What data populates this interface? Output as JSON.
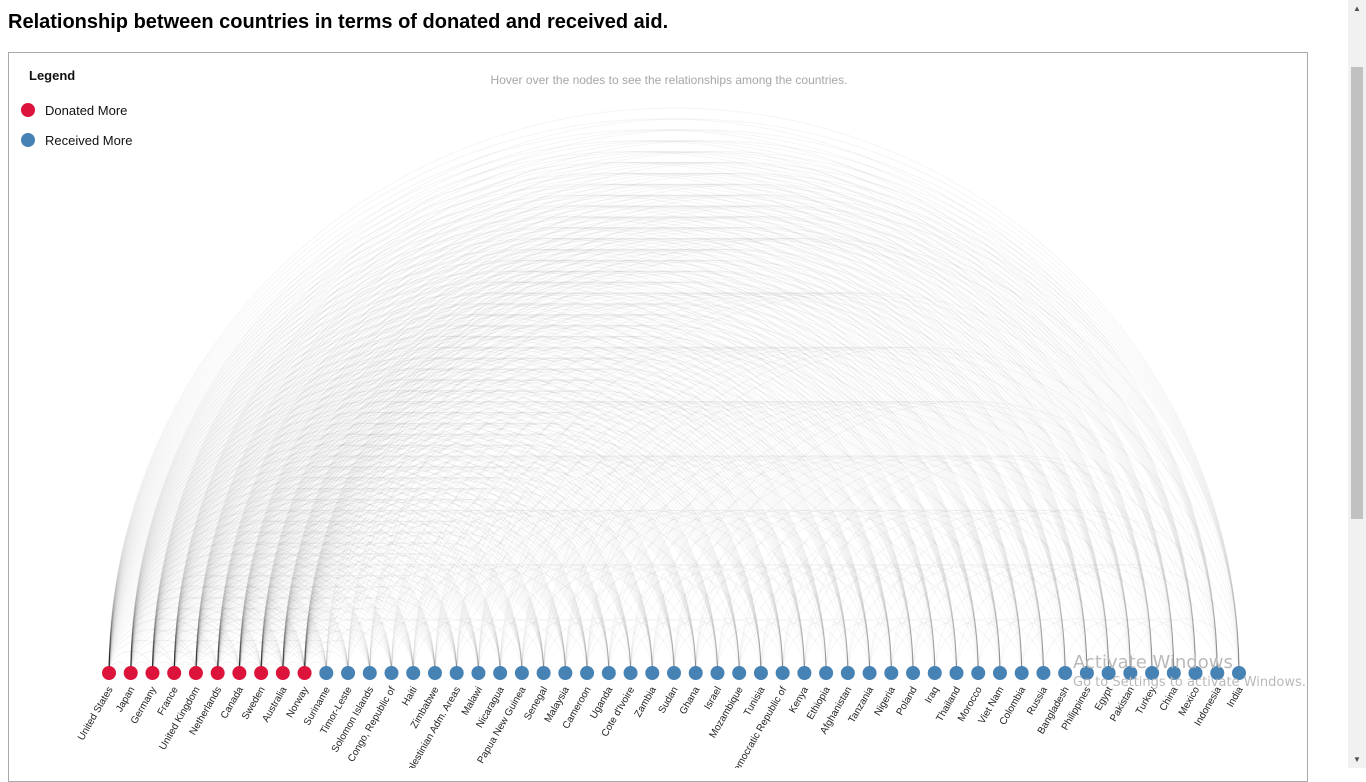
{
  "page": {
    "title": "Relationship between countries in terms of donated and received aid."
  },
  "chart": {
    "hint": "Hover over the nodes to see the relationships among the countries.",
    "legend": {
      "title": "Legend",
      "items": [
        {
          "label": "Donated More",
          "color": "#dc143c"
        },
        {
          "label": "Received More",
          "color": "#4682b4"
        }
      ]
    }
  },
  "chart_data": {
    "type": "arc",
    "title": "Relationship between countries in terms of donated and received aid.",
    "legend_position": "top-left",
    "colors": {
      "donor": "#dc143c",
      "recipient": "#4682b4",
      "link": "#000000"
    },
    "nodes": [
      {
        "name": "United States",
        "group": "donor"
      },
      {
        "name": "Japan",
        "group": "donor"
      },
      {
        "name": "Germany",
        "group": "donor"
      },
      {
        "name": "France",
        "group": "donor"
      },
      {
        "name": "United Kingdom",
        "group": "donor"
      },
      {
        "name": "Netherlands",
        "group": "donor"
      },
      {
        "name": "Canada",
        "group": "donor"
      },
      {
        "name": "Sweden",
        "group": "donor"
      },
      {
        "name": "Australia",
        "group": "donor"
      },
      {
        "name": "Norway",
        "group": "donor"
      },
      {
        "name": "Suriname",
        "group": "recipient"
      },
      {
        "name": "Timor-Leste",
        "group": "recipient"
      },
      {
        "name": "Solomon Islands",
        "group": "recipient"
      },
      {
        "name": "Congo, Republic of",
        "group": "recipient"
      },
      {
        "name": "Haiti",
        "group": "recipient"
      },
      {
        "name": "Zimbabwe",
        "group": "recipient"
      },
      {
        "name": "Palestinian Adm. Areas",
        "group": "recipient"
      },
      {
        "name": "Malawi",
        "group": "recipient"
      },
      {
        "name": "Nicaragua",
        "group": "recipient"
      },
      {
        "name": "Papua New Guinea",
        "group": "recipient"
      },
      {
        "name": "Senegal",
        "group": "recipient"
      },
      {
        "name": "Malaysia",
        "group": "recipient"
      },
      {
        "name": "Cameroon",
        "group": "recipient"
      },
      {
        "name": "Uganda",
        "group": "recipient"
      },
      {
        "name": "Cote d'Ivoire",
        "group": "recipient"
      },
      {
        "name": "Zambia",
        "group": "recipient"
      },
      {
        "name": "Sudan",
        "group": "recipient"
      },
      {
        "name": "Ghana",
        "group": "recipient"
      },
      {
        "name": "Israel",
        "group": "recipient"
      },
      {
        "name": "Mozambique",
        "group": "recipient"
      },
      {
        "name": "Tunisia",
        "group": "recipient"
      },
      {
        "name": "Congo, Democratic Republic of",
        "group": "recipient"
      },
      {
        "name": "Kenya",
        "group": "recipient"
      },
      {
        "name": "Ethiopia",
        "group": "recipient"
      },
      {
        "name": "Afghanistan",
        "group": "recipient"
      },
      {
        "name": "Tanzania",
        "group": "recipient"
      },
      {
        "name": "Nigeria",
        "group": "recipient"
      },
      {
        "name": "Poland",
        "group": "recipient"
      },
      {
        "name": "Iraq",
        "group": "recipient"
      },
      {
        "name": "Thailand",
        "group": "recipient"
      },
      {
        "name": "Morocco",
        "group": "recipient"
      },
      {
        "name": "Viet Nam",
        "group": "recipient"
      },
      {
        "name": "Colombia",
        "group": "recipient"
      },
      {
        "name": "Russia",
        "group": "recipient"
      },
      {
        "name": "Bangladesh",
        "group": "recipient"
      },
      {
        "name": "Philippines",
        "group": "recipient"
      },
      {
        "name": "Egypt",
        "group": "recipient"
      },
      {
        "name": "Pakistan",
        "group": "recipient"
      },
      {
        "name": "Turkey",
        "group": "recipient"
      },
      {
        "name": "China",
        "group": "recipient"
      },
      {
        "name": "Mexico",
        "group": "recipient"
      },
      {
        "name": "Indonesia",
        "group": "recipient"
      },
      {
        "name": "India",
        "group": "recipient"
      }
    ]
  },
  "watermark": {
    "title": "Activate Windows",
    "subtitle": "Go to Settings to activate Windows."
  }
}
